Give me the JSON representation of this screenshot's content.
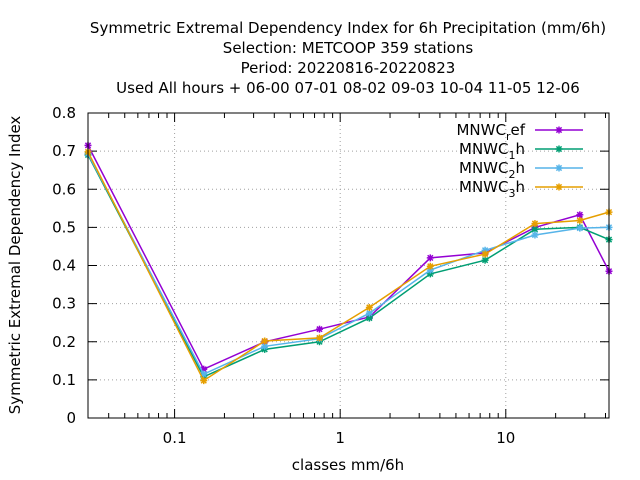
{
  "chart_data": {
    "type": "line",
    "title_lines": [
      "Symmetric Extremal Dependency Index  for 6h Precipitation (mm/6h)",
      "Selection: METCOOP    359 stations",
      "Period: 20220816-20220823",
      "Used  All hours  + 06-00 07-01 08-02 09-03 10-04 11-05 12-06"
    ],
    "xlabel": "classes mm/6h",
    "ylabel": "Symmetric Extremal Dependency Index",
    "xscale": "log",
    "xlim": [
      0.03,
      42
    ],
    "ylim": [
      0,
      0.8
    ],
    "x_ticks": [
      0.1,
      1,
      10
    ],
    "x_tick_labels": [
      "0.1",
      "1",
      "10"
    ],
    "y_ticks": [
      0,
      0.1,
      0.2,
      0.3,
      0.4,
      0.5,
      0.6,
      0.7,
      0.8
    ],
    "y_tick_labels": [
      "0",
      "0.1",
      "0.2",
      "0.3",
      "0.4",
      "0.5",
      "0.6",
      "0.7",
      "0.8"
    ],
    "grid": true,
    "legend_position": "top-right",
    "x": [
      0.03,
      0.15,
      0.35,
      0.75,
      1.5,
      3.5,
      7.5,
      15,
      28,
      42
    ],
    "series": [
      {
        "name_base": "MNWC",
        "name_sub": "r",
        "name_suffix": "ef",
        "color": "#9400d3",
        "values": [
          0.715,
          0.128,
          0.2,
          0.233,
          0.265,
          0.42,
          0.433,
          0.5,
          0.533,
          0.385
        ]
      },
      {
        "name_base": "MNWC",
        "name_sub": "1",
        "name_suffix": "h",
        "color": "#009e73",
        "values": [
          0.69,
          0.108,
          0.18,
          0.2,
          0.262,
          0.378,
          0.414,
          0.495,
          0.5,
          0.468
        ]
      },
      {
        "name_base": "MNWC",
        "name_sub": "2",
        "name_suffix": "h",
        "color": "#56b4e9",
        "values": [
          0.693,
          0.115,
          0.188,
          0.208,
          0.275,
          0.388,
          0.44,
          0.48,
          0.498,
          0.5
        ]
      },
      {
        "name_base": "MNWC",
        "name_sub": "3",
        "name_suffix": "h",
        "color": "#e69f00",
        "values": [
          0.698,
          0.098,
          0.202,
          0.21,
          0.29,
          0.398,
          0.43,
          0.51,
          0.518,
          0.54
        ]
      }
    ]
  }
}
